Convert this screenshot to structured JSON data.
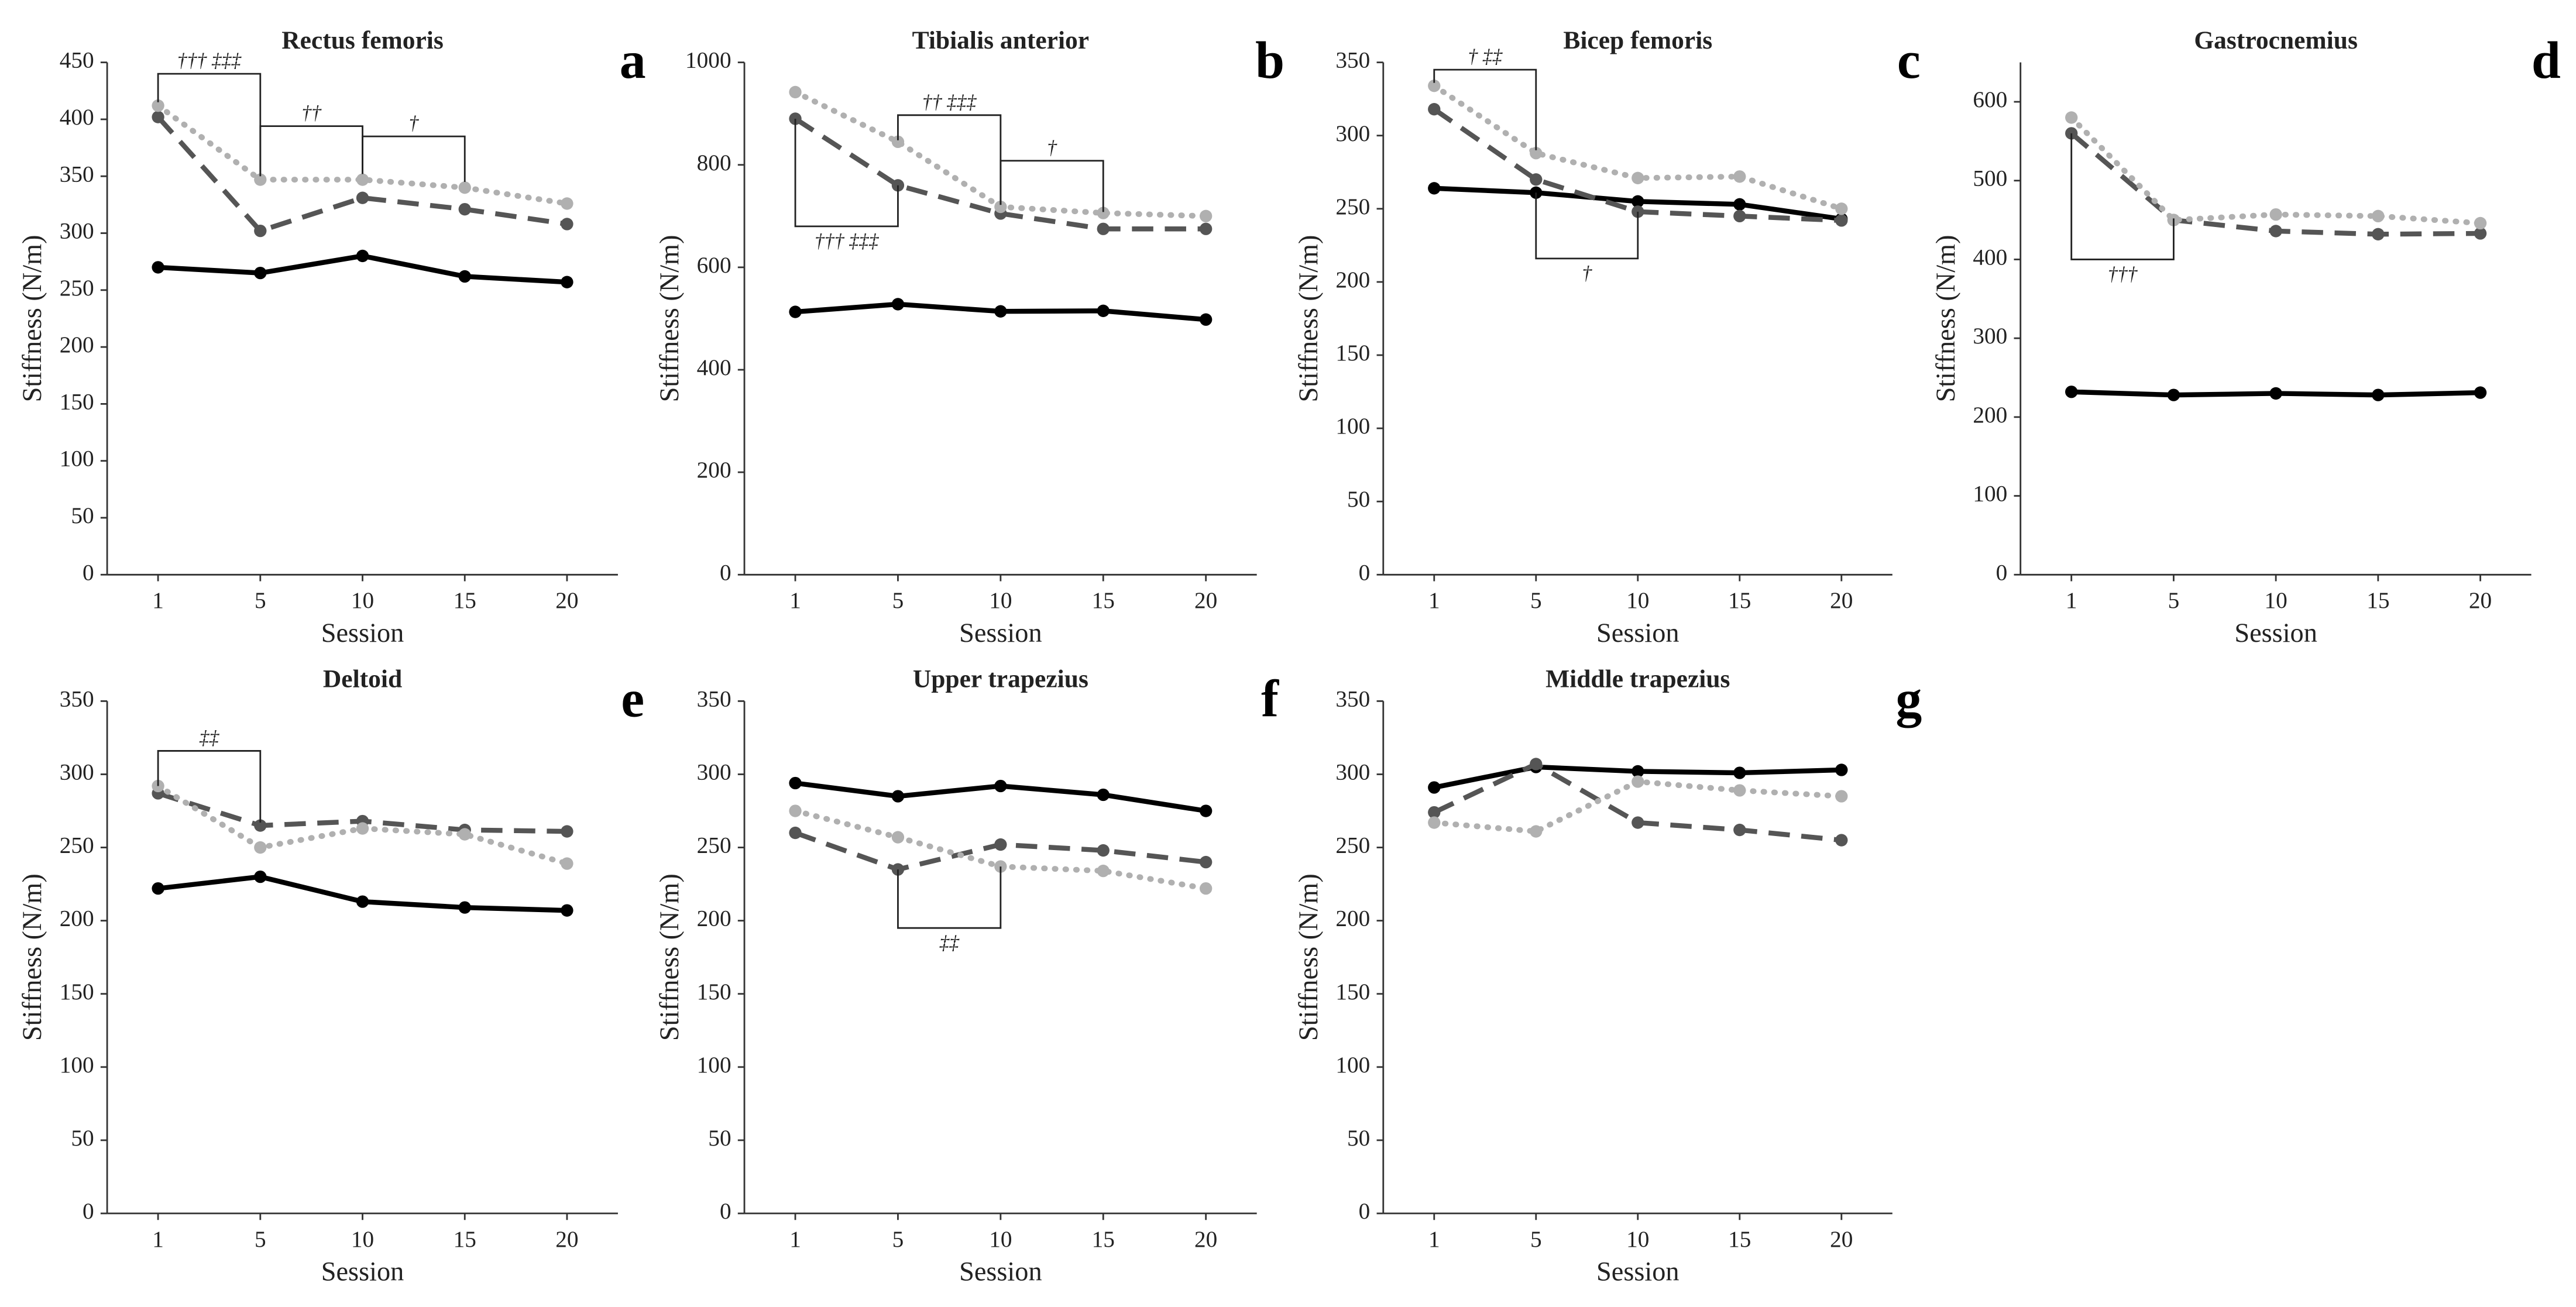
{
  "chart_data": [
    {
      "type": "line",
      "title": "Rectus femoris",
      "panel_label": "a",
      "x_label": "Session",
      "y_label": "Stiffness (N/m)",
      "categories": [
        "1",
        "5",
        "10",
        "15",
        "20"
      ],
      "ylim": [
        0,
        450
      ],
      "yticks": [
        0,
        50,
        100,
        150,
        200,
        250,
        300,
        350,
        400,
        450
      ],
      "series": [
        {
          "color": "#000000",
          "style": "solid",
          "values": [
            270,
            265,
            280,
            262,
            257
          ]
        },
        {
          "color": "#555555",
          "style": "dashed",
          "values": [
            402,
            302,
            331,
            321,
            308
          ]
        },
        {
          "color": "#b0b0b0",
          "style": "dotted",
          "values": [
            412,
            347,
            347,
            340,
            326
          ]
        }
      ],
      "annotations": [
        "††† ‡‡‡",
        "††",
        "†"
      ]
    },
    {
      "type": "line",
      "title": "Tibialis anterior",
      "panel_label": "b",
      "x_label": "Session",
      "y_label": "Stiffness (N/m)",
      "categories": [
        "1",
        "5",
        "10",
        "15",
        "20"
      ],
      "ylim": [
        0,
        1000
      ],
      "yticks": [
        0,
        200,
        400,
        600,
        800,
        1000
      ],
      "series": [
        {
          "color": "#000000",
          "style": "solid",
          "values": [
            513,
            528,
            514,
            515,
            498
          ]
        },
        {
          "color": "#555555",
          "style": "dashed",
          "values": [
            890,
            760,
            705,
            675,
            675
          ]
        },
        {
          "color": "#b0b0b0",
          "style": "dotted",
          "values": [
            942,
            845,
            718,
            706,
            700
          ]
        }
      ],
      "annotations": [
        "††† ‡‡‡",
        "†† ‡‡‡",
        "†"
      ]
    },
    {
      "type": "line",
      "title": "Bicep femoris",
      "panel_label": "c",
      "x_label": "Session",
      "y_label": "Stiffness (N/m)",
      "categories": [
        "1",
        "5",
        "10",
        "15",
        "20"
      ],
      "ylim": [
        0,
        350
      ],
      "yticks": [
        0,
        50,
        100,
        150,
        200,
        250,
        300,
        350
      ],
      "series": [
        {
          "color": "#000000",
          "style": "solid",
          "values": [
            264,
            261,
            255,
            253,
            243
          ]
        },
        {
          "color": "#555555",
          "style": "dashed",
          "values": [
            318,
            270,
            248,
            245,
            242
          ]
        },
        {
          "color": "#b0b0b0",
          "style": "dotted",
          "values": [
            334,
            288,
            271,
            272,
            250
          ]
        }
      ],
      "annotations": [
        "† ‡‡",
        "†"
      ]
    },
    {
      "type": "line",
      "title": "Gastrocnemius",
      "panel_label": "d",
      "x_label": "Session",
      "y_label": "Stiffness (N/m)",
      "categories": [
        "1",
        "5",
        "10",
        "15",
        "20"
      ],
      "ylim": [
        0,
        650
      ],
      "yticks": [
        0,
        100,
        200,
        300,
        400,
        500,
        600
      ],
      "series": [
        {
          "color": "#000000",
          "style": "solid",
          "values": [
            232,
            228,
            230,
            228,
            231
          ]
        },
        {
          "color": "#555555",
          "style": "dashed",
          "values": [
            560,
            450,
            436,
            432,
            433
          ]
        },
        {
          "color": "#b0b0b0",
          "style": "dotted",
          "values": [
            580,
            450,
            457,
            455,
            446
          ]
        }
      ],
      "annotations": [
        "†††"
      ]
    },
    {
      "type": "line",
      "title": "Deltoid",
      "panel_label": "e",
      "x_label": "Session",
      "y_label": "Stiffness (N/m)",
      "categories": [
        "1",
        "5",
        "10",
        "15",
        "20"
      ],
      "ylim": [
        0,
        350
      ],
      "yticks": [
        0,
        50,
        100,
        150,
        200,
        250,
        300,
        350
      ],
      "series": [
        {
          "color": "#000000",
          "style": "solid",
          "values": [
            222,
            230,
            213,
            209,
            207
          ]
        },
        {
          "color": "#555555",
          "style": "dashed",
          "values": [
            287,
            265,
            268,
            262,
            261
          ]
        },
        {
          "color": "#b0b0b0",
          "style": "dotted",
          "values": [
            292,
            250,
            263,
            259,
            239
          ]
        }
      ],
      "annotations": [
        "‡‡"
      ]
    },
    {
      "type": "line",
      "title": "Upper trapezius",
      "panel_label": "f",
      "x_label": "Session",
      "y_label": "Stiffness (N/m)",
      "categories": [
        "1",
        "5",
        "10",
        "15",
        "20"
      ],
      "ylim": [
        0,
        350
      ],
      "yticks": [
        0,
        50,
        100,
        150,
        200,
        250,
        300,
        350
      ],
      "series": [
        {
          "color": "#000000",
          "style": "solid",
          "values": [
            294,
            285,
            292,
            286,
            275
          ]
        },
        {
          "color": "#555555",
          "style": "dashed",
          "values": [
            260,
            235,
            252,
            248,
            240
          ]
        },
        {
          "color": "#b0b0b0",
          "style": "dotted",
          "values": [
            275,
            257,
            237,
            234,
            222
          ]
        }
      ],
      "annotations": [
        "‡‡"
      ]
    },
    {
      "type": "line",
      "title": "Middle trapezius",
      "panel_label": "g",
      "x_label": "Session",
      "y_label": "Stiffness (N/m)",
      "categories": [
        "1",
        "5",
        "10",
        "15",
        "20"
      ],
      "ylim": [
        0,
        350
      ],
      "yticks": [
        0,
        50,
        100,
        150,
        200,
        250,
        300,
        350
      ],
      "series": [
        {
          "color": "#000000",
          "style": "solid",
          "values": [
            291,
            305,
            302,
            301,
            303
          ]
        },
        {
          "color": "#555555",
          "style": "dashed",
          "values": [
            274,
            307,
            267,
            262,
            255
          ]
        },
        {
          "color": "#b0b0b0",
          "style": "dotted",
          "values": [
            267,
            261,
            295,
            289,
            285
          ]
        }
      ],
      "annotations": []
    }
  ]
}
